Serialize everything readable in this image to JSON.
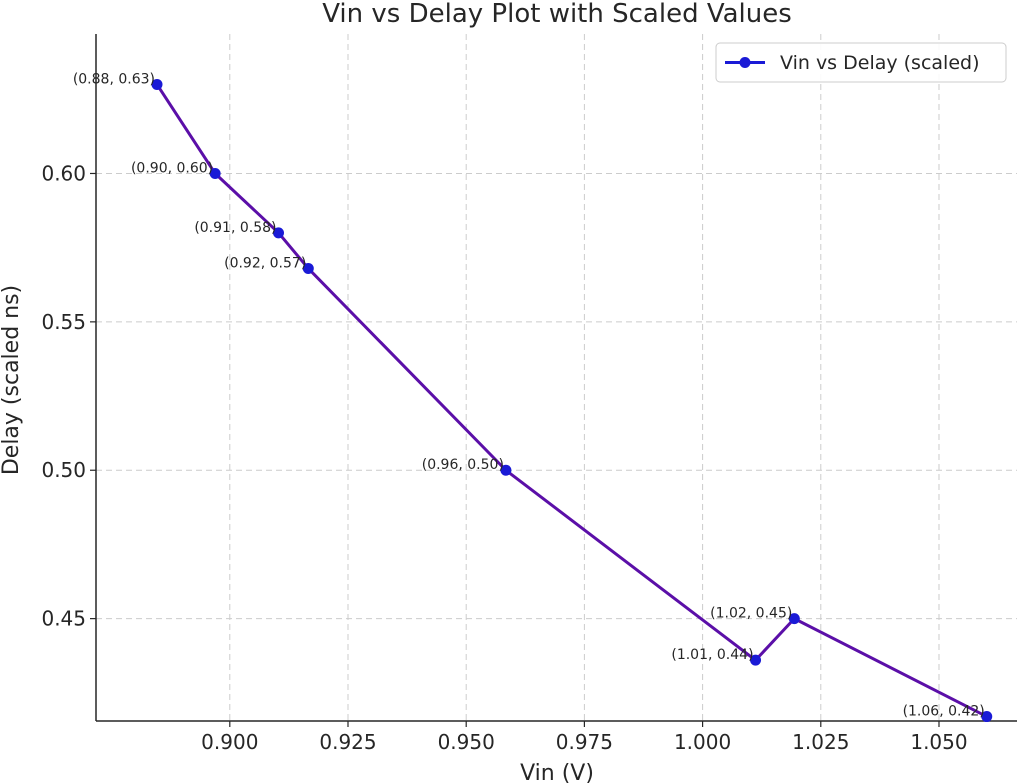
{
  "chart_data": {
    "type": "line",
    "title": "Vin vs Delay Plot with Scaled Values",
    "xlabel": "Vin (V)",
    "ylabel": "Delay (scaled ns)",
    "xlim": [
      0.8717,
      1.0665
    ],
    "ylim": [
      0.4155,
      0.647
    ],
    "grid": true,
    "legend_position": "top-right",
    "x_ticks": [
      0.9,
      0.925,
      0.95,
      0.975,
      1.0,
      1.025,
      1.05
    ],
    "x_tick_labels": [
      "0.900",
      "0.925",
      "0.950",
      "0.975",
      "1.000",
      "1.025",
      "1.050"
    ],
    "y_ticks": [
      0.45,
      0.5,
      0.55,
      0.6
    ],
    "y_tick_labels": [
      "0.45",
      "0.50",
      "0.55",
      "0.60"
    ],
    "series": [
      {
        "name": "Vin vs Delay (scaled)",
        "line_color": "#5b0fa8",
        "marker_color": "#1a1ad6",
        "x": [
          0.8846,
          0.8969,
          0.9103,
          0.9166,
          0.9584,
          1.0112,
          1.0194,
          1.0601
        ],
        "y": [
          0.63,
          0.6,
          0.58,
          0.568,
          0.5,
          0.436,
          0.45,
          0.417
        ],
        "labels": [
          "(0.88, 0.63)",
          "(0.90, 0.60)",
          "(0.91, 0.58)",
          "(0.92, 0.57)",
          "(0.96, 0.50)",
          "(1.01, 0.44)",
          "(1.02, 0.45)",
          "(1.06, 0.42)"
        ]
      }
    ]
  }
}
